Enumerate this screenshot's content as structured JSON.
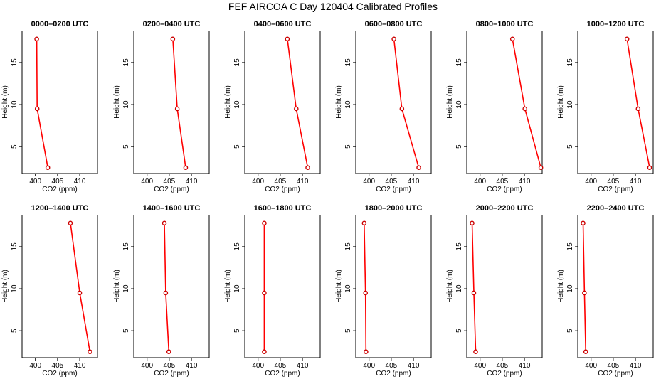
{
  "figure": {
    "title": "FEF AIRCOA C  Day 120404  Calibrated Profiles"
  },
  "colors": {
    "line": "#ff0000",
    "marker": "#cc0000",
    "axis": "#000000",
    "background": "#ffffff"
  },
  "chart_data": [
    {
      "type": "line",
      "title": "0000–0200 UTC",
      "xlabel": "CO2 (ppm)",
      "ylabel": "Height (m)",
      "xlim": [
        397,
        414
      ],
      "ylim": [
        1.8,
        18.8
      ],
      "xticks": [
        400,
        405,
        410
      ],
      "yticks": [
        5,
        10,
        15
      ],
      "series": [
        {
          "x": [
            402.8,
            400.4,
            400.3
          ],
          "y": [
            2.5,
            9.5,
            17.8
          ]
        }
      ]
    },
    {
      "type": "line",
      "title": "0200–0400 UTC",
      "xlabel": "CO2 (ppm)",
      "ylabel": "Height (m)",
      "xlim": [
        397,
        414
      ],
      "ylim": [
        1.8,
        18.8
      ],
      "xticks": [
        400,
        405,
        410
      ],
      "yticks": [
        5,
        10,
        15
      ],
      "series": [
        {
          "x": [
            408.7,
            406.8,
            405.8
          ],
          "y": [
            2.5,
            9.5,
            17.8
          ]
        }
      ]
    },
    {
      "type": "line",
      "title": "0400–0600 UTC",
      "xlabel": "CO2 (ppm)",
      "ylabel": "Height (m)",
      "xlim": [
        397,
        414
      ],
      "ylim": [
        1.8,
        18.8
      ],
      "xticks": [
        400,
        405,
        410
      ],
      "yticks": [
        5,
        10,
        15
      ],
      "series": [
        {
          "x": [
            411.2,
            408.6,
            406.6
          ],
          "y": [
            2.5,
            9.5,
            17.8
          ]
        }
      ]
    },
    {
      "type": "line",
      "title": "0600–0800 UTC",
      "xlabel": "CO2 (ppm)",
      "ylabel": "Height (m)",
      "xlim": [
        397,
        414
      ],
      "ylim": [
        1.8,
        18.8
      ],
      "xticks": [
        400,
        405,
        410
      ],
      "yticks": [
        5,
        10,
        15
      ],
      "series": [
        {
          "x": [
            411.2,
            407.4,
            405.6
          ],
          "y": [
            2.5,
            9.5,
            17.8
          ]
        }
      ]
    },
    {
      "type": "line",
      "title": "0800–1000 UTC",
      "xlabel": "CO2 (ppm)",
      "ylabel": "Height (m)",
      "xlim": [
        397,
        414
      ],
      "ylim": [
        1.8,
        18.8
      ],
      "xticks": [
        400,
        405,
        410
      ],
      "yticks": [
        5,
        10,
        15
      ],
      "series": [
        {
          "x": [
            413.7,
            410.1,
            407.3
          ],
          "y": [
            2.5,
            9.5,
            17.8
          ]
        }
      ]
    },
    {
      "type": "line",
      "title": "1000–1200 UTC",
      "xlabel": "CO2 (ppm)",
      "ylabel": "Height (m)",
      "xlim": [
        397,
        414
      ],
      "ylim": [
        1.8,
        18.8
      ],
      "xticks": [
        400,
        405,
        410
      ],
      "yticks": [
        5,
        10,
        15
      ],
      "series": [
        {
          "x": [
            413.2,
            410.6,
            408.1
          ],
          "y": [
            2.5,
            9.5,
            17.8
          ]
        }
      ]
    },
    {
      "type": "line",
      "title": "1200–1400 UTC",
      "xlabel": "CO2 (ppm)",
      "ylabel": "Height (m)",
      "xlim": [
        397,
        414
      ],
      "ylim": [
        1.8,
        18.8
      ],
      "xticks": [
        400,
        405,
        410
      ],
      "yticks": [
        5,
        10,
        15
      ],
      "series": [
        {
          "x": [
            412.3,
            410.0,
            407.9
          ],
          "y": [
            2.5,
            9.5,
            17.8
          ]
        }
      ]
    },
    {
      "type": "line",
      "title": "1400–1600 UTC",
      "xlabel": "CO2 (ppm)",
      "ylabel": "Height (m)",
      "xlim": [
        397,
        414
      ],
      "ylim": [
        1.8,
        18.8
      ],
      "xticks": [
        400,
        405,
        410
      ],
      "yticks": [
        5,
        10,
        15
      ],
      "series": [
        {
          "x": [
            404.9,
            404.2,
            403.9
          ],
          "y": [
            2.5,
            9.5,
            17.8
          ]
        }
      ]
    },
    {
      "type": "line",
      "title": "1600–1800 UTC",
      "xlabel": "CO2 (ppm)",
      "ylabel": "Height (m)",
      "xlim": [
        397,
        414
      ],
      "ylim": [
        1.8,
        18.8
      ],
      "xticks": [
        400,
        405,
        410
      ],
      "yticks": [
        5,
        10,
        15
      ],
      "series": [
        {
          "x": [
            401.4,
            401.4,
            401.4
          ],
          "y": [
            2.5,
            9.5,
            17.8
          ]
        }
      ]
    },
    {
      "type": "line",
      "title": "1800–2000 UTC",
      "xlabel": "CO2 (ppm)",
      "ylabel": "Height (m)",
      "xlim": [
        397,
        414
      ],
      "ylim": [
        1.8,
        18.8
      ],
      "xticks": [
        400,
        405,
        410
      ],
      "yticks": [
        5,
        10,
        15
      ],
      "series": [
        {
          "x": [
            399.3,
            399.2,
            398.9
          ],
          "y": [
            2.5,
            9.5,
            17.8
          ]
        }
      ]
    },
    {
      "type": "line",
      "title": "2000–2200 UTC",
      "xlabel": "CO2 (ppm)",
      "ylabel": "Height (m)",
      "xlim": [
        397,
        414
      ],
      "ylim": [
        1.8,
        18.8
      ],
      "xticks": [
        400,
        405,
        410
      ],
      "yticks": [
        5,
        10,
        15
      ],
      "series": [
        {
          "x": [
            399.0,
            398.6,
            398.2
          ],
          "y": [
            2.5,
            9.5,
            17.8
          ]
        }
      ]
    },
    {
      "type": "line",
      "title": "2200–2400 UTC",
      "xlabel": "CO2 (ppm)",
      "ylabel": "Height (m)",
      "xlim": [
        397,
        414
      ],
      "ylim": [
        1.8,
        18.8
      ],
      "xticks": [
        400,
        405,
        410
      ],
      "yticks": [
        5,
        10,
        15
      ],
      "series": [
        {
          "x": [
            398.8,
            398.5,
            398.2
          ],
          "y": [
            2.5,
            9.5,
            17.8
          ]
        }
      ]
    }
  ]
}
